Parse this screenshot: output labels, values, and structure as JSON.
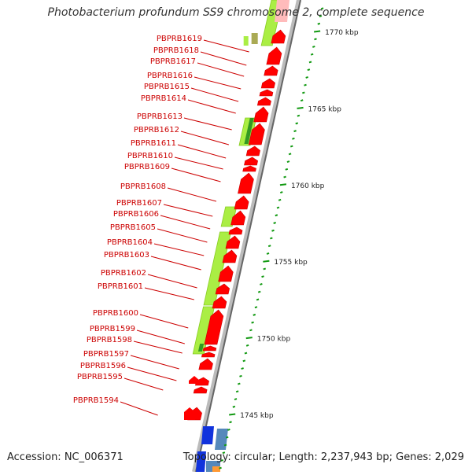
{
  "title": "Photobacterium profundum SS9 chromosome 2, complete sequence",
  "accession": "Accession: NC_006371",
  "summary": "Topology: circular; Length: 2,237,943 bp; Genes: 2,029",
  "colors": {
    "gene_label": "#cc0000",
    "gene_arrow": "#ff0000",
    "feature_green": "#aaee44",
    "tick_green": "#119911",
    "backbone": "#777777",
    "blue": "#1133dd",
    "steel": "#5588bb"
  },
  "ticks": [
    {
      "label": "1770 kbp",
      "kbp": 1770
    },
    {
      "label": "1765 kbp",
      "kbp": 1765
    },
    {
      "label": "1760 kbp",
      "kbp": 1760
    },
    {
      "label": "1755 kbp",
      "kbp": 1755
    },
    {
      "label": "1750 kbp",
      "kbp": 1750
    },
    {
      "label": "1745 kbp",
      "kbp": 1745
    }
  ],
  "genes": [
    "PBPRB1619",
    "PBPRB1618",
    "PBPRB1617",
    "PBPRB1616",
    "PBPRB1615",
    "PBPRB1614",
    "PBPRB1613",
    "PBPRB1612",
    "PBPRB1611",
    "PBPRB1610",
    "PBPRB1609",
    "PBPRB1608",
    "PBPRB1607",
    "PBPRB1606",
    "PBPRB1605",
    "PBPRB1604",
    "PBPRB1603",
    "PBPRB1602",
    "PBPRB1601",
    "PBPRB1600",
    "PBPRB1599",
    "PBPRB1598",
    "PBPRB1597",
    "PBPRB1596",
    "PBPRB1595",
    "PBPRB1594"
  ]
}
